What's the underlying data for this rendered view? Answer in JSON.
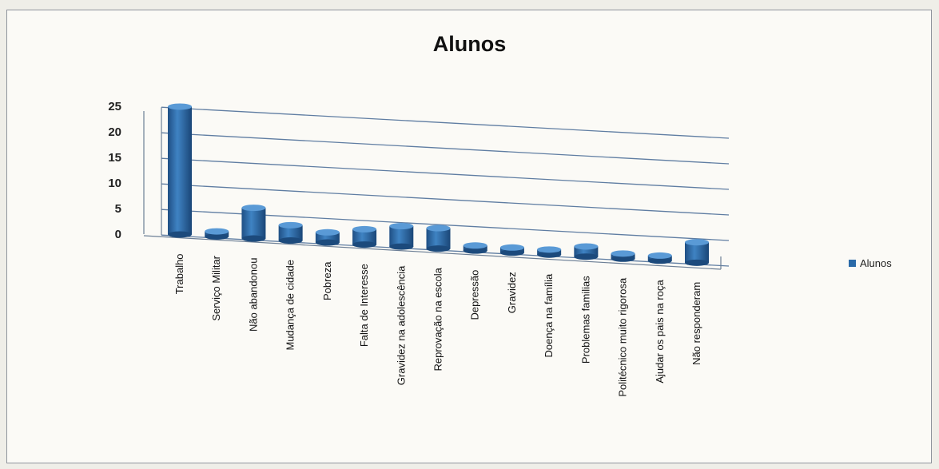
{
  "chart_data": {
    "type": "bar",
    "title": "Alunos",
    "categories": [
      "Trabalho",
      "Serviço Militar",
      "Não abandonou",
      "Mudança de cidade",
      "Pobreza",
      "Falta de Interesse",
      "Gravidez na adolescência",
      "Reprovação na escola",
      "Depressão",
      "Gravidez",
      "Doença na família",
      "Problemas familias",
      "Politécnico muito rigorosa",
      "Ajudar os pais na roça",
      "Não responderam"
    ],
    "series": [
      {
        "name": "Alunos",
        "values": [
          25,
          1,
          6,
          3,
          2,
          3,
          4,
          4,
          1,
          1,
          1,
          2,
          1,
          1,
          4
        ]
      }
    ],
    "ylim": [
      0,
      25
    ],
    "yticks": [
      "25",
      "20",
      "15",
      "10",
      "5",
      "0"
    ],
    "grid": true,
    "legend_position": "right",
    "color": "#2a6aa8"
  }
}
